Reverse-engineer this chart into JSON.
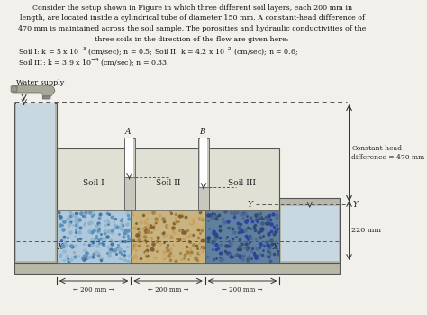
{
  "text_lines": [
    "Consider the setup shown in Figure in which three different soil layers, each 200 mm in",
    "length, are located inside a cylindrical tube of diameter 150 mm. A constant-head difference of",
    "470 mm is maintained across the soil sample. The porosities and hydraulic conductivities of the",
    "three soils in the direction of the flow are given here:",
    "Soil I: k = 5 x 10$^{-3}$ (cm/sec); n = 0.5; Soil II: k = 4.2 x 10$^{-2}$ (cm/sec); n = 0.6;",
    "Soil III: k = 3.9 x 10$^{-4}$ (cm/sec); n = 0.33."
  ],
  "bg_color": "#f2f0eb",
  "tank_fill": "#b8b8a8",
  "soil_bg": "#ddddd0",
  "soil1_fill": "#b0c8dc",
  "soil2_fill": "#c8b480",
  "soil3_fill": "#6080a0",
  "water_fill": "#c8d8e0",
  "piez_fill": "#d8d8cc",
  "right_tank_fill": "#b8b8a8"
}
